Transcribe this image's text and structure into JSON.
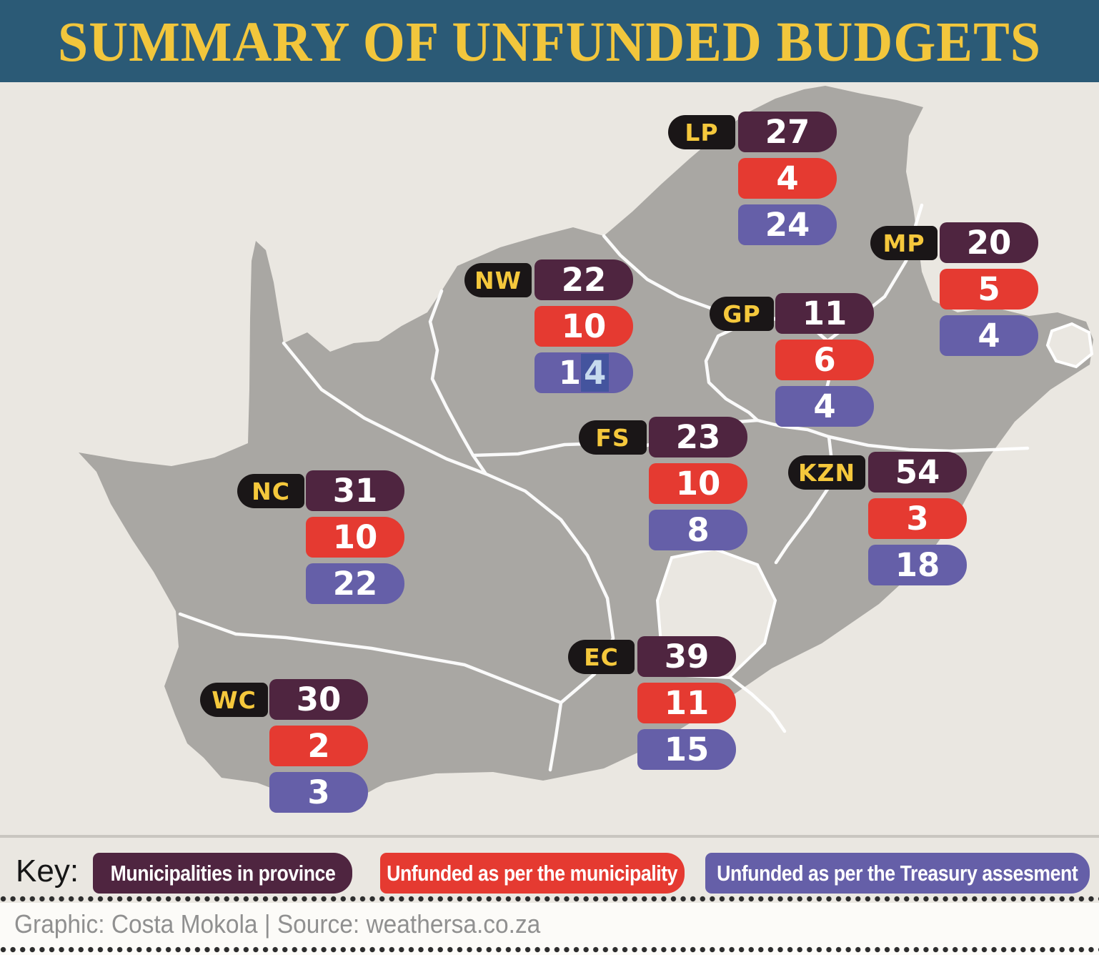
{
  "title": "SUMMARY OF UNFUNDED BUDGETS",
  "colors": {
    "header_bg": "#2b5a76",
    "title_text": "#f2c63c",
    "background": "#eae7e1",
    "map_fill": "#a9a7a3",
    "border_lines": "#ffffff",
    "municipalities_pill": "#4f2540",
    "unfunded_municipality_pill": "#e53a31",
    "unfunded_treasury_pill": "#655fa8",
    "province_label_bg": "#1a1617",
    "province_label_text": "#f5c83c",
    "value_text": "#ffffff",
    "selection_bg": "#44549e",
    "selection_text": "#c6daee",
    "footer_text": "#909090",
    "dots": "#2d2d2d"
  },
  "provinces": [
    {
      "code": "LP",
      "municipalities": "27",
      "unfunded_municipality": "4",
      "unfunded_treasury": "24"
    },
    {
      "code": "MP",
      "municipalities": "20",
      "unfunded_municipality": "5",
      "unfunded_treasury": "4"
    },
    {
      "code": "NW",
      "municipalities": "22",
      "unfunded_municipality": "10",
      "unfunded_treasury": "14",
      "treasury_selection": {
        "prefix": "1",
        "highlighted": "4"
      }
    },
    {
      "code": "GP",
      "municipalities": "11",
      "unfunded_municipality": "6",
      "unfunded_treasury": "4"
    },
    {
      "code": "FS",
      "municipalities": "23",
      "unfunded_municipality": "10",
      "unfunded_treasury": "8"
    },
    {
      "code": "KZN",
      "municipalities": "54",
      "unfunded_municipality": "3",
      "unfunded_treasury": "18"
    },
    {
      "code": "NC",
      "municipalities": "31",
      "unfunded_municipality": "10",
      "unfunded_treasury": "22"
    },
    {
      "code": "EC",
      "municipalities": "39",
      "unfunded_municipality": "11",
      "unfunded_treasury": "15"
    },
    {
      "code": "WC",
      "municipalities": "30",
      "unfunded_municipality": "2",
      "unfunded_treasury": "3"
    }
  ],
  "key": {
    "label": "Key:",
    "items": [
      {
        "text": "Municipalities in province",
        "color": "#4f2540"
      },
      {
        "text": "Unfunded as per the municipality",
        "color": "#e53a31"
      },
      {
        "text": "Unfunded as per the Treasury assesment",
        "color": "#655fa8"
      }
    ]
  },
  "footer": "Graphic: Costa Mokola | Source: weathersa.co.za",
  "chart_data": {
    "type": "table",
    "title": "SUMMARY OF UNFUNDED BUDGETS",
    "categories": [
      "LP",
      "MP",
      "NW",
      "GP",
      "FS",
      "KZN",
      "NC",
      "EC",
      "WC"
    ],
    "series": [
      {
        "name": "Municipalities in province",
        "values": [
          27,
          20,
          22,
          11,
          23,
          54,
          31,
          39,
          30
        ]
      },
      {
        "name": "Unfunded as per the municipality",
        "values": [
          4,
          5,
          10,
          6,
          10,
          3,
          10,
          11,
          2
        ]
      },
      {
        "name": "Unfunded as per the Treasury assesment",
        "values": [
          24,
          4,
          14,
          4,
          8,
          18,
          22,
          15,
          3
        ]
      }
    ],
    "legend_position": "bottom",
    "notes": "Values shown as labelled pills placed over a map of South Africa's nine provinces"
  }
}
